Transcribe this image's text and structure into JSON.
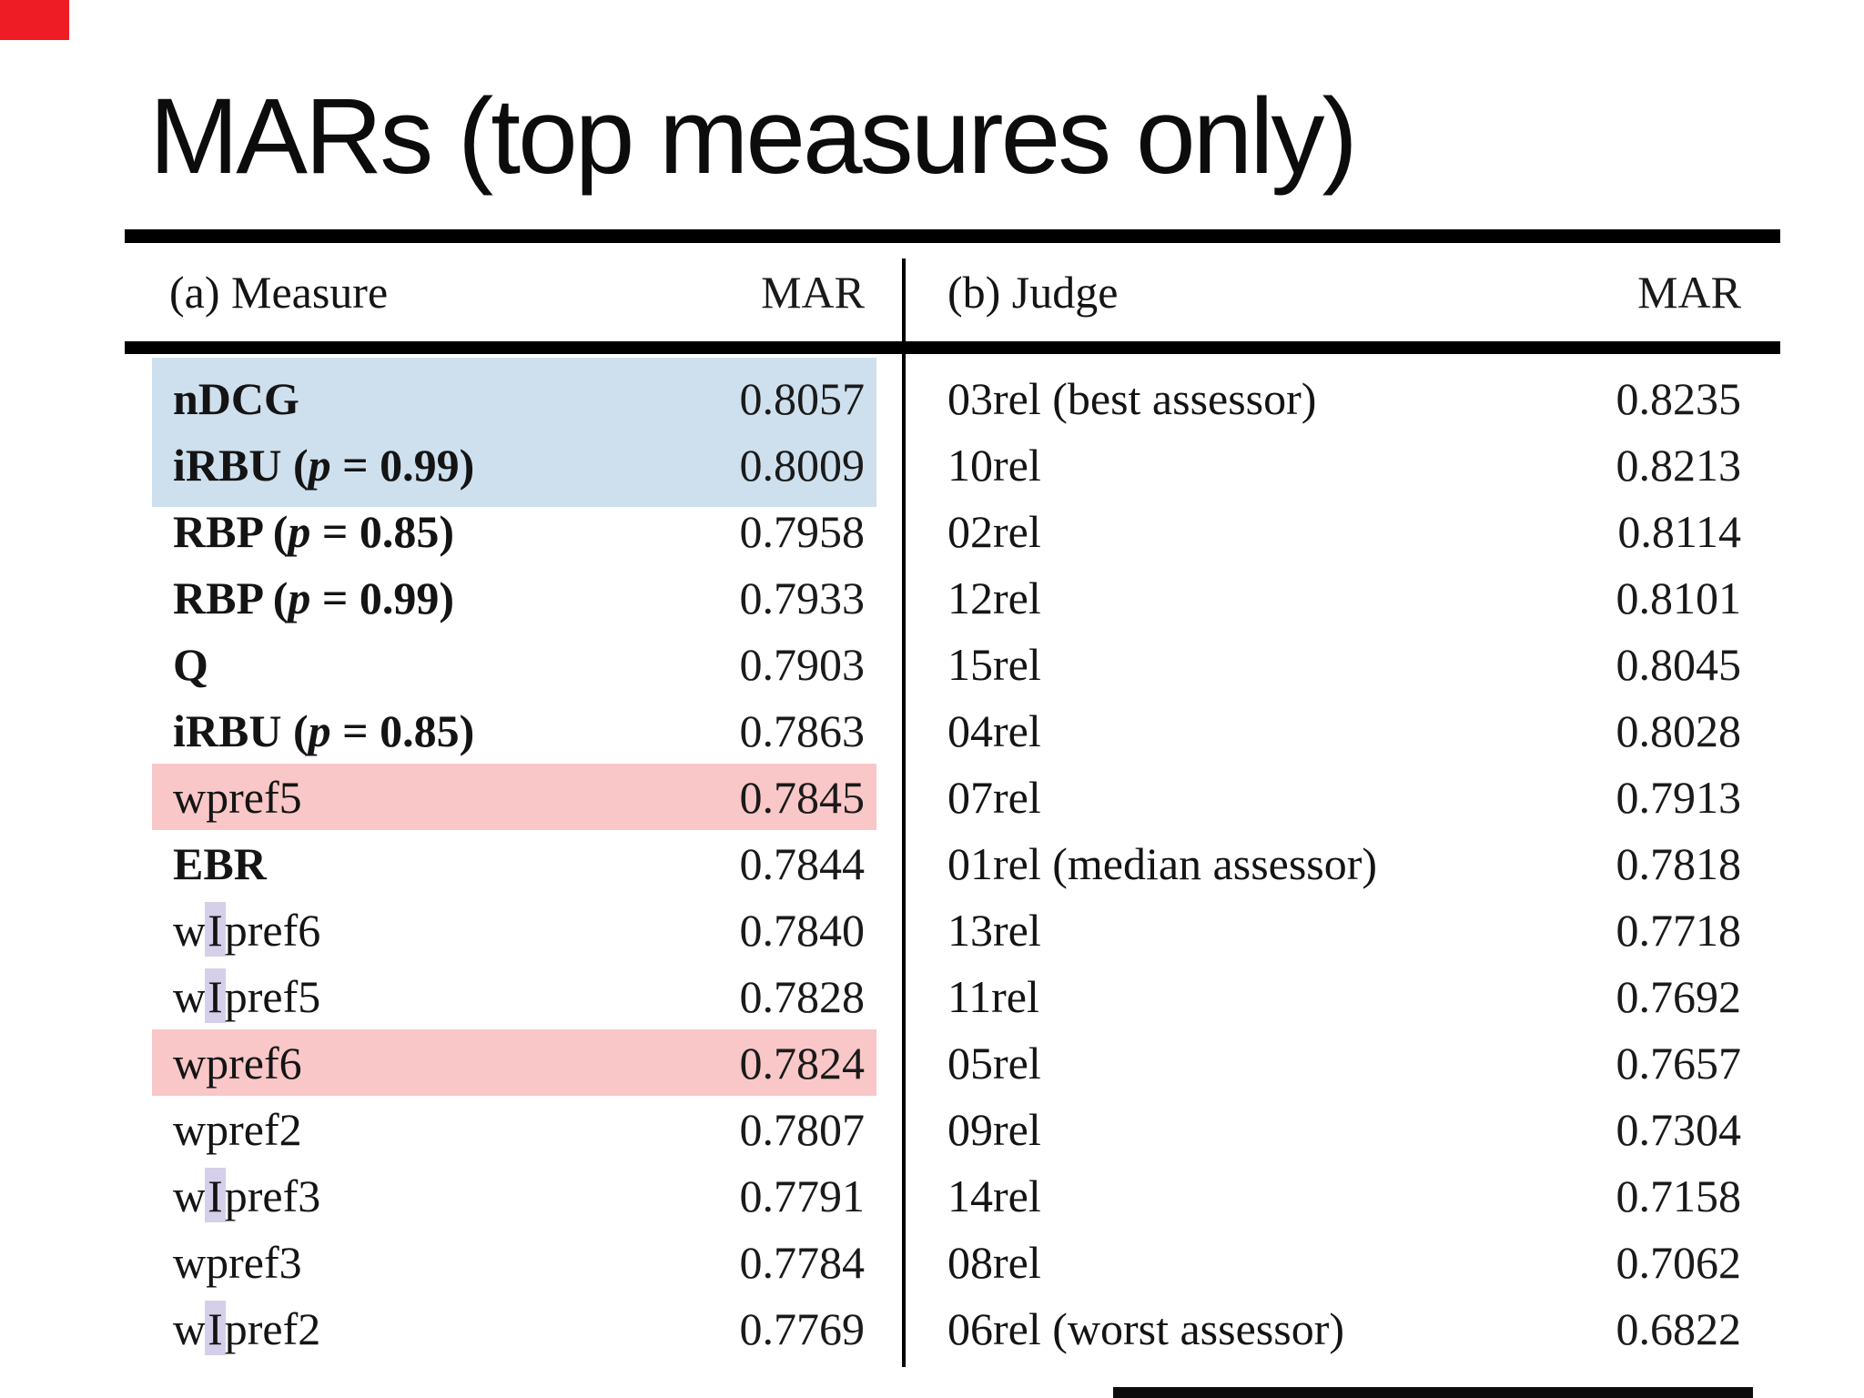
{
  "slide": {
    "title": "MARs (top measures only)"
  },
  "colors": {
    "highlight_blue": "#cee0ed",
    "highlight_pink": "#f9c7c7",
    "highlight_lavender": "#d6cfea",
    "corner_marker": "#ee1c25",
    "bottom_bar": "#0d0d0d",
    "rule_black": "#000000"
  },
  "measure_table": {
    "header": {
      "label": "(a) Measure",
      "value": "MAR"
    },
    "rows": [
      {
        "label": "nDCG",
        "bold": true,
        "value": "0.8057",
        "highlight": "blue"
      },
      {
        "label": "iRBU",
        "param": "0.99",
        "bold": true,
        "value": "0.8009",
        "highlight": "blue"
      },
      {
        "label": "RBP",
        "param": "0.85",
        "bold": true,
        "value": "0.7958"
      },
      {
        "label": "RBP",
        "param": "0.99",
        "bold": true,
        "value": "0.7933"
      },
      {
        "label": "Q",
        "bold": true,
        "value": "0.7903"
      },
      {
        "label": "iRBU",
        "param": "0.85",
        "bold": true,
        "value": "0.7863"
      },
      {
        "label": "wpref5",
        "value": "0.7845",
        "highlight": "pink"
      },
      {
        "label": "EBR",
        "bold": true,
        "value": "0.7844"
      },
      {
        "label": "wIpref6",
        "mark_I": true,
        "value": "0.7840"
      },
      {
        "label": "wIpref5",
        "mark_I": true,
        "value": "0.7828"
      },
      {
        "label": "wpref6",
        "value": "0.7824",
        "highlight": "pink"
      },
      {
        "label": "wpref2",
        "value": "0.7807"
      },
      {
        "label": "wIpref3",
        "mark_I": true,
        "value": "0.7791"
      },
      {
        "label": "wpref3",
        "value": "0.7784"
      },
      {
        "label": "wIpref2",
        "mark_I": true,
        "value": "0.7769"
      }
    ]
  },
  "judge_table": {
    "header": {
      "label": "(b) Judge",
      "value": "MAR"
    },
    "rows": [
      {
        "label": "03rel (best assessor)",
        "value": "0.8235"
      },
      {
        "label": "10rel",
        "value": "0.8213"
      },
      {
        "label": "02rel",
        "value": "0.8114"
      },
      {
        "label": "12rel",
        "value": "0.8101"
      },
      {
        "label": "15rel",
        "value": "0.8045"
      },
      {
        "label": "04rel",
        "value": "0.8028"
      },
      {
        "label": "07rel",
        "value": "0.7913"
      },
      {
        "label": "01rel (median assessor)",
        "value": "0.7818"
      },
      {
        "label": "13rel",
        "value": "0.7718"
      },
      {
        "label": "11rel",
        "value": "0.7692"
      },
      {
        "label": "05rel",
        "value": "0.7657"
      },
      {
        "label": "09rel",
        "value": "0.7304"
      },
      {
        "label": "14rel",
        "value": "0.7158"
      },
      {
        "label": "08rel",
        "value": "0.7062"
      },
      {
        "label": "06rel (worst assessor)",
        "value": "0.6822"
      }
    ]
  }
}
